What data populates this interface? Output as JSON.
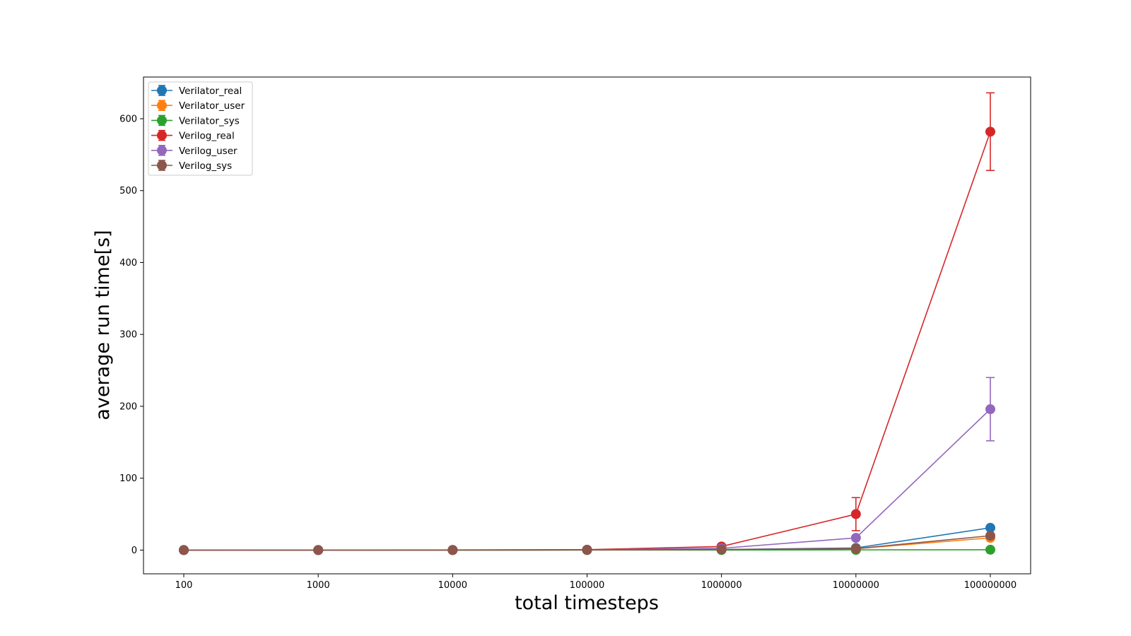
{
  "chart_data": {
    "type": "line",
    "title": "",
    "xlabel": "total timesteps",
    "ylabel": "average run time[s]",
    "categories": [
      "100",
      "1000",
      "10000",
      "100000",
      "1000000",
      "10000000",
      "100000000"
    ],
    "ylim": [
      -33,
      658
    ],
    "yticks": [
      "0",
      "100",
      "200",
      "300",
      "400",
      "500",
      "600"
    ],
    "grid": false,
    "legend_position": "upper left",
    "series": [
      {
        "name": "Verilator_real",
        "color": "#1f77b4",
        "values": [
          0.01,
          0.02,
          0.05,
          0.3,
          0.8,
          3,
          31
        ],
        "errors": [
          0,
          0,
          0,
          0,
          0,
          0.5,
          1
        ]
      },
      {
        "name": "Verilator_user",
        "color": "#ff7f0e",
        "values": [
          0.0,
          0.01,
          0.03,
          0.2,
          0.5,
          2,
          17
        ],
        "errors": [
          0,
          0,
          0,
          0,
          0,
          0.5,
          1
        ]
      },
      {
        "name": "Verilator_sys",
        "color": "#2ca02c",
        "values": [
          0.0,
          0.0,
          0.01,
          0.05,
          0.1,
          0.3,
          0.5
        ],
        "errors": [
          0,
          0,
          0,
          0,
          0,
          0,
          0
        ]
      },
      {
        "name": "Verilog_real",
        "color": "#d62728",
        "values": [
          0.02,
          0.05,
          0.2,
          0.6,
          5,
          50,
          582
        ],
        "errors": [
          0,
          0,
          0,
          0,
          0.5,
          23,
          54
        ]
      },
      {
        "name": "Verilog_user",
        "color": "#9467bd",
        "values": [
          0.01,
          0.02,
          0.1,
          0.3,
          2.5,
          17,
          196
        ],
        "errors": [
          0,
          0,
          0,
          0,
          0.2,
          2,
          44
        ]
      },
      {
        "name": "Verilog_sys",
        "color": "#8c564b",
        "values": [
          0.0,
          0.01,
          0.05,
          0.2,
          0.8,
          2,
          20
        ],
        "errors": [
          0,
          0,
          0,
          0,
          0,
          0.3,
          1
        ]
      }
    ]
  }
}
